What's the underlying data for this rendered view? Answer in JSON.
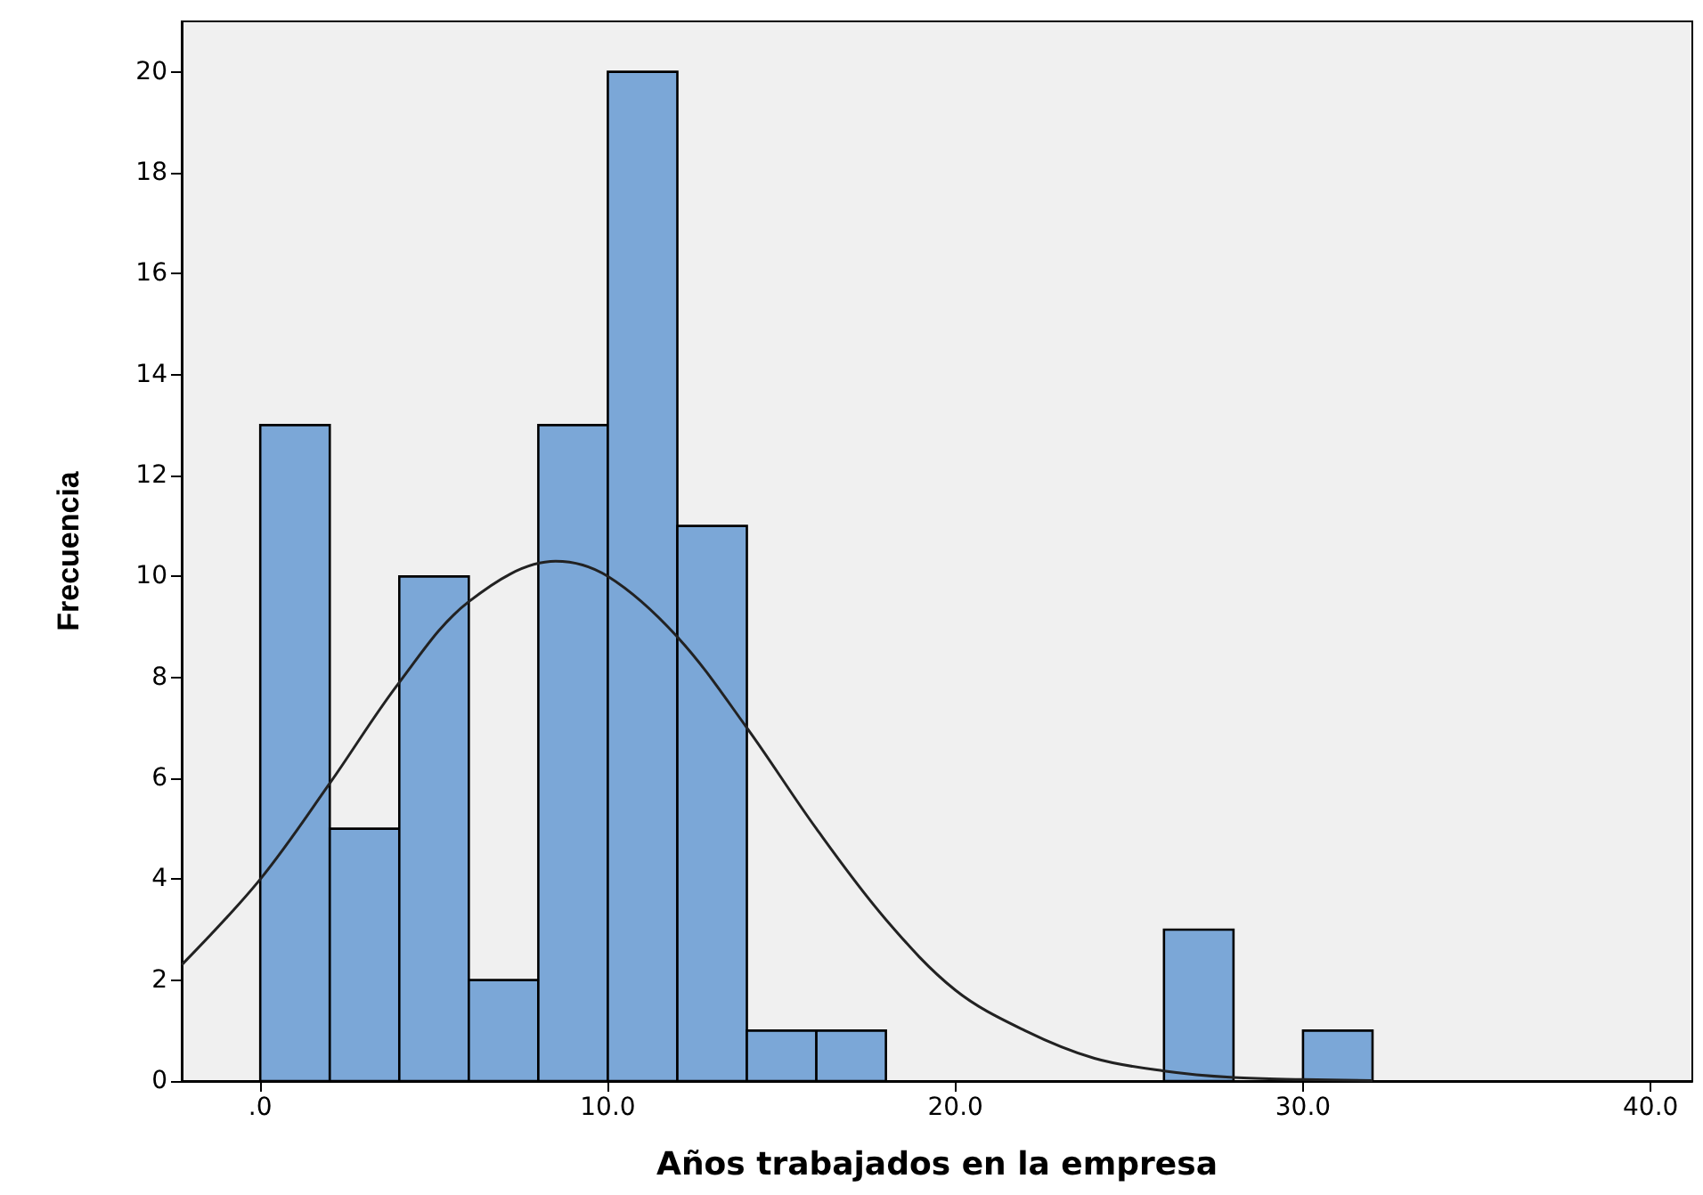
{
  "chart_data": {
    "type": "histogram",
    "xlabel": "Años trabajados en la empresa",
    "ylabel": "Frecuencia",
    "xlim": [
      -2.26,
      41.2
    ],
    "xticks": [
      {
        "value": 0,
        "label": ".0"
      },
      {
        "value": 10,
        "label": "10.0"
      },
      {
        "value": 20,
        "label": "20.0"
      },
      {
        "value": 30,
        "label": "30.0"
      },
      {
        "value": 40,
        "label": "40.0"
      }
    ],
    "ylim": [
      0,
      21
    ],
    "yticks": [
      0,
      2,
      4,
      6,
      8,
      10,
      12,
      14,
      16,
      18,
      20
    ],
    "grid": false,
    "series": [
      {
        "color": "#7ba7d7",
        "bins": [
          0,
          2,
          4,
          6,
          8,
          10,
          12,
          14,
          16,
          18,
          20,
          22,
          24,
          26,
          28,
          30,
          32
        ],
        "values": [
          13,
          5,
          10,
          2,
          13,
          20,
          11,
          1,
          1,
          0,
          0,
          0,
          0,
          3,
          0,
          1
        ]
      },
      {
        "type": "line",
        "color": "#222222",
        "marker": "none",
        "x": [
          -2.26,
          0,
          2,
          4,
          6,
          8.5,
          10,
          12,
          14,
          16,
          18,
          20,
          22,
          24,
          26,
          28,
          30,
          32
        ],
        "values": [
          2.3,
          4.0,
          5.9,
          7.9,
          9.5,
          10.3,
          10.0,
          8.8,
          7.0,
          5.0,
          3.2,
          1.8,
          1.0,
          0.45,
          0.2,
          0.07,
          0.03,
          0.01
        ]
      }
    ]
  }
}
